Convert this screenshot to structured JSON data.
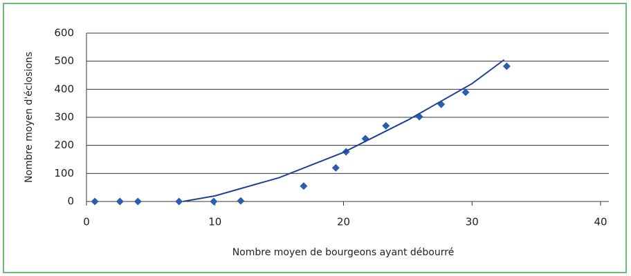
{
  "chart_data": {
    "type": "scatter",
    "xlabel": "Nombre moyen de bourgeons ayant débourré",
    "ylabel": "Nombre moyen d'éclosions",
    "series": [
      {
        "type": "scatter",
        "color": "#2a5db0",
        "x": [
          0.65,
          2.6,
          4.0,
          7.2,
          9.9,
          12.0,
          16.9,
          19.4,
          20.2,
          21.7,
          23.3,
          25.9,
          27.6,
          29.5,
          32.7
        ],
        "values": [
          0,
          0,
          0,
          0,
          0,
          2,
          55,
          120,
          177,
          224,
          270,
          302,
          346,
          389,
          482
        ]
      },
      {
        "type": "line",
        "color": "#1f3f94",
        "x": [
          7.5,
          10,
          15,
          20,
          25,
          30,
          32.5
        ],
        "values": [
          0,
          20,
          85,
          175,
          290,
          420,
          505
        ]
      }
    ],
    "xlim": [
      0,
      40
    ],
    "xticks": [
      0,
      10,
      20,
      30,
      40
    ],
    "ylim": [
      0,
      600
    ],
    "yticks": [
      0,
      100,
      200,
      300,
      400,
      500,
      600
    ],
    "grid": true
  }
}
